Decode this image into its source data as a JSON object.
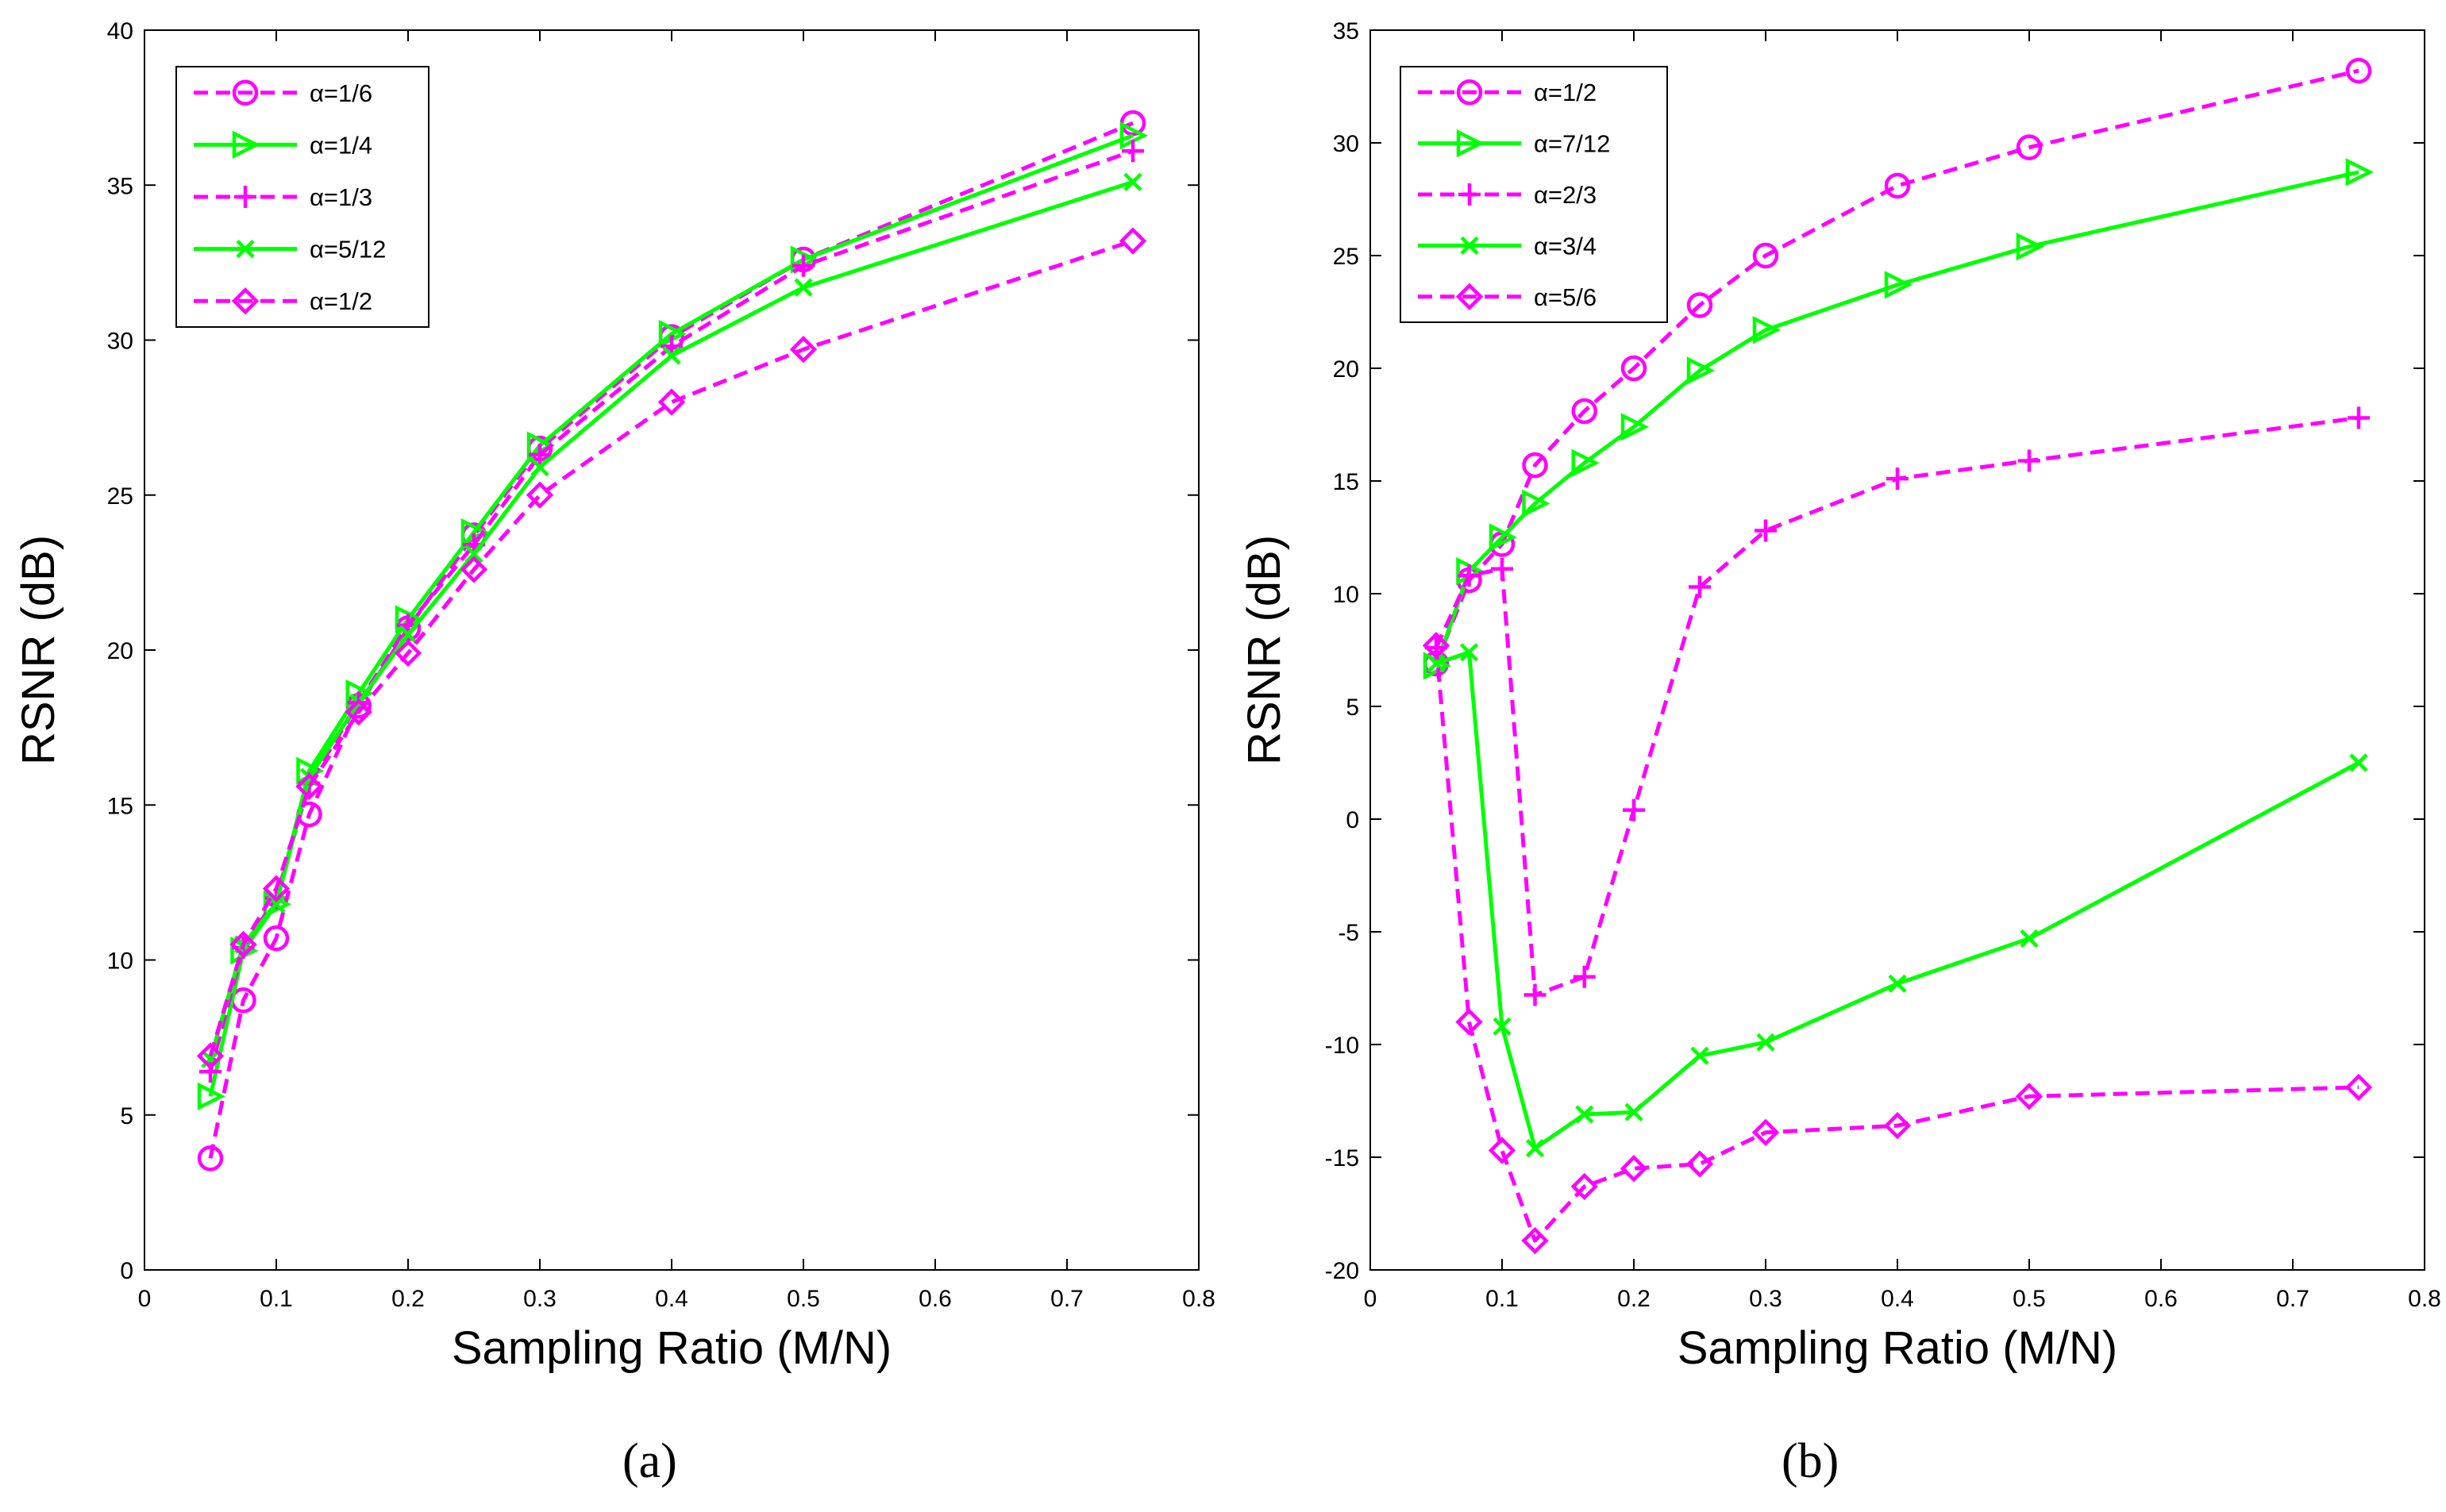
{
  "chart_data": [
    {
      "type": "line",
      "panel_label": "(a)",
      "title": "",
      "xlabel": "Sampling Ratio (M/N)",
      "ylabel": "RSNR (dB)",
      "xlim": [
        0,
        0.8
      ],
      "ylim": [
        0,
        40
      ],
      "xticks": [
        "0",
        "0.1",
        "0.2",
        "0.3",
        "0.4",
        "0.5",
        "0.6",
        "0.7",
        "0.8"
      ],
      "yticks": [
        "0",
        "5",
        "10",
        "15",
        "20",
        "25",
        "30",
        "35",
        "40"
      ],
      "legend_position": "top-left",
      "grid": false,
      "x": [
        0.05,
        0.075,
        0.1,
        0.125,
        0.1625,
        0.2,
        0.25,
        0.3,
        0.4,
        0.5,
        0.75
      ],
      "series": [
        {
          "name": "α=1/6",
          "color": "#ff00ff",
          "dash": "dashed",
          "marker": "circle",
          "values": [
            3.6,
            8.7,
            10.7,
            14.7,
            18.2,
            20.7,
            23.7,
            26.5,
            30.1,
            32.6,
            37.0
          ]
        },
        {
          "name": "α=1/4",
          "color": "#00ff00",
          "dash": "solid",
          "marker": "triangle-right",
          "values": [
            5.6,
            10.3,
            11.8,
            16.1,
            18.6,
            21.0,
            23.8,
            26.6,
            30.2,
            32.6,
            36.6
          ]
        },
        {
          "name": "α=1/3",
          "color": "#ff00ff",
          "dash": "dashed",
          "marker": "plus",
          "values": [
            6.4,
            10.4,
            12.0,
            15.7,
            18.3,
            20.8,
            23.4,
            26.3,
            29.8,
            32.4,
            36.1
          ]
        },
        {
          "name": "α=5/12",
          "color": "#00ff00",
          "dash": "solid",
          "marker": "x",
          "values": [
            6.8,
            10.5,
            11.8,
            15.9,
            18.3,
            20.5,
            23.1,
            25.9,
            29.5,
            31.7,
            35.1
          ]
        },
        {
          "name": "α=1/2",
          "color": "#ff00ff",
          "dash": "dashed",
          "marker": "diamond",
          "values": [
            6.9,
            10.5,
            12.3,
            15.6,
            18.0,
            19.9,
            22.6,
            25.0,
            28.0,
            29.7,
            33.2
          ]
        }
      ]
    },
    {
      "type": "line",
      "panel_label": "(b)",
      "title": "",
      "xlabel": "Sampling Ratio (M/N)",
      "ylabel": "RSNR (dB)",
      "xlim": [
        0,
        0.8
      ],
      "ylim": [
        -20,
        35
      ],
      "xticks": [
        "0",
        "0.1",
        "0.2",
        "0.3",
        "0.4",
        "0.5",
        "0.6",
        "0.7",
        "0.8"
      ],
      "yticks": [
        "-20",
        "-15",
        "-10",
        "-5",
        "0",
        "5",
        "10",
        "15",
        "20",
        "25",
        "30",
        "35"
      ],
      "legend_position": "top-left",
      "grid": false,
      "x": [
        0.05,
        0.075,
        0.1,
        0.125,
        0.1625,
        0.2,
        0.25,
        0.3,
        0.4,
        0.5,
        0.75
      ],
      "series": [
        {
          "name": "α=1/2",
          "color": "#ff00ff",
          "dash": "dashed",
          "marker": "circle",
          "values": [
            6.9,
            10.6,
            12.2,
            15.7,
            18.1,
            20.0,
            22.8,
            25.0,
            28.1,
            29.8,
            33.2
          ]
        },
        {
          "name": "α=7/12",
          "color": "#00ff00",
          "dash": "solid",
          "marker": "triangle-right",
          "values": [
            6.8,
            11.0,
            12.5,
            14.0,
            15.8,
            17.4,
            19.9,
            21.7,
            23.7,
            25.4,
            28.7
          ]
        },
        {
          "name": "α=2/3",
          "color": "#ff00ff",
          "dash": "dashed",
          "marker": "plus",
          "values": [
            7.6,
            10.8,
            11.1,
            -7.8,
            -7.0,
            0.4,
            10.3,
            12.8,
            15.1,
            15.9,
            17.8
          ]
        },
        {
          "name": "α=3/4",
          "color": "#00ff00",
          "dash": "solid",
          "marker": "x",
          "values": [
            6.9,
            7.4,
            -9.2,
            -14.6,
            -13.1,
            -13.0,
            -10.5,
            -9.9,
            -7.3,
            -5.3,
            2.5
          ]
        },
        {
          "name": "α=5/6",
          "color": "#ff00ff",
          "dash": "dashed",
          "marker": "diamond",
          "values": [
            7.7,
            -9.0,
            -14.7,
            -18.7,
            -16.3,
            -15.5,
            -15.3,
            -13.9,
            -13.6,
            -12.3,
            -11.9
          ]
        }
      ]
    }
  ]
}
